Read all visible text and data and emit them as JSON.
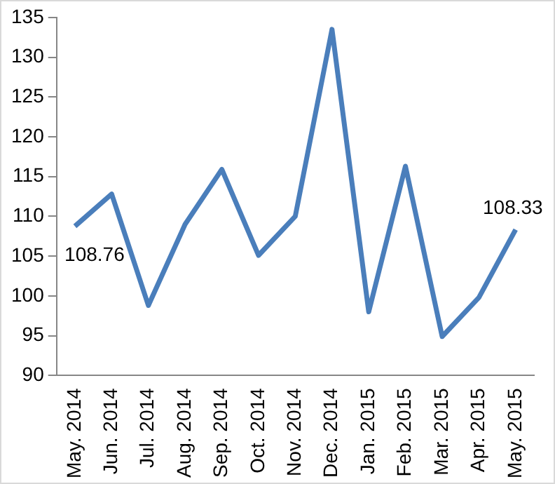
{
  "chart_data": {
    "type": "line",
    "categories": [
      "May. 2014",
      "Jun. 2014",
      "Jul. 2014",
      "Aug. 2014",
      "Sep. 2014",
      "Oct. 2014",
      "Nov. 2014",
      "Dec. 2014",
      "Jan. 2015",
      "Feb. 2015",
      "Mar. 2015",
      "Apr. 2015",
      "May. 2015"
    ],
    "series": [
      {
        "color": "#4a7ebb",
        "values": [
          108.76,
          112.8,
          98.8,
          109.0,
          115.9,
          105.1,
          110.0,
          133.5,
          98.0,
          116.3,
          94.9,
          99.8,
          108.33
        ]
      }
    ],
    "ylim": [
      90,
      135
    ],
    "yticks": [
      90,
      95,
      100,
      105,
      110,
      115,
      120,
      125,
      130,
      135
    ],
    "grid": false,
    "legend": false,
    "marker": "none",
    "annotations": [
      {
        "text": "108.76",
        "x": "May. 2014",
        "y": 108.76
      },
      {
        "text": "108.33",
        "x": "May. 2015",
        "y": 108.33
      }
    ]
  }
}
